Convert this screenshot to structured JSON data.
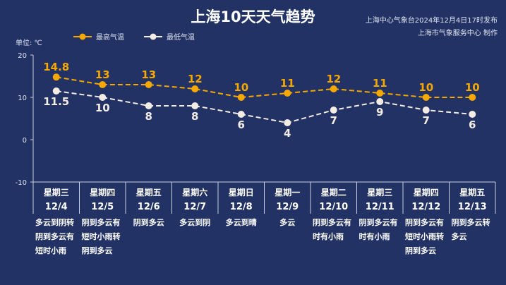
{
  "title": "上海10天天气趋势",
  "publisher_line1": "上海中心气象台2024年12月4日17时发布",
  "publisher_line2": "上海市气象服务中心 制作",
  "unit_label": "单位: ℃",
  "colors": {
    "background": "#233264",
    "high": "#f5a800",
    "low": "#f3ece4"
  },
  "chart_data": {
    "type": "line",
    "title": "上海10天天气趋势",
    "ylabel": "单位: ℃",
    "ylim": [
      -10,
      20
    ],
    "yticks": [
      20,
      10,
      0,
      -10
    ],
    "legend": "top-left",
    "categories": [
      "星期三 12/4",
      "星期四 12/5",
      "星期五 12/6",
      "星期六 12/7",
      "星期日 12/8",
      "星期一 12/9",
      "星期二 12/10",
      "星期三 12/11",
      "星期四 12/12",
      "星期五 12/13"
    ],
    "series": [
      {
        "name": "最高气温",
        "values": [
          14.8,
          13,
          13,
          12,
          10,
          11,
          12,
          11,
          10,
          10
        ]
      },
      {
        "name": "最低气温",
        "values": [
          11.5,
          10,
          8,
          8,
          6,
          4,
          7,
          9,
          7,
          6
        ]
      }
    ]
  },
  "days": [
    {
      "weekday": "星期三",
      "date": "12/4",
      "weather": [
        "多云到阴转",
        "阴到多云有",
        "短时小雨"
      ]
    },
    {
      "weekday": "星期四",
      "date": "12/5",
      "weather": [
        "阴到多云有",
        "短时小雨转",
        "阴到多云"
      ]
    },
    {
      "weekday": "星期五",
      "date": "12/6",
      "weather": [
        "阴到多云"
      ]
    },
    {
      "weekday": "星期六",
      "date": "12/7",
      "weather": [
        "多云到阴"
      ]
    },
    {
      "weekday": "星期日",
      "date": "12/8",
      "weather": [
        "多云到晴"
      ]
    },
    {
      "weekday": "星期一",
      "date": "12/9",
      "weather": [
        "多云"
      ]
    },
    {
      "weekday": "星期二",
      "date": "12/10",
      "weather": [
        "阴到多云有",
        "时有小雨"
      ]
    },
    {
      "weekday": "星期三",
      "date": "12/11",
      "weather": [
        "阴到多云有",
        "时有小雨"
      ]
    },
    {
      "weekday": "星期四",
      "date": "12/12",
      "weather": [
        "阴到多云有",
        "短时小雨转",
        "阴到多云"
      ]
    },
    {
      "weekday": "星期五",
      "date": "12/13",
      "weather": [
        "阴到多云转",
        "多云"
      ]
    }
  ]
}
